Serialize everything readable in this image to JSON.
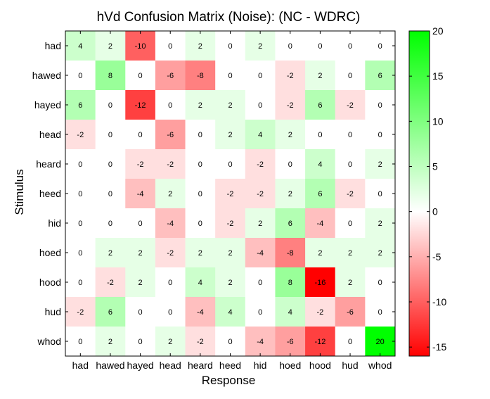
{
  "chart_data": {
    "type": "heatmap",
    "title": "hVd Confusion Matrix (Noise): (NC - WDRC)",
    "xlabel": "Response",
    "ylabel": "Stimulus",
    "x_categories": [
      "had",
      "hawed",
      "hayed",
      "head",
      "heard",
      "heed",
      "hid",
      "hoed",
      "hood",
      "hud",
      "whod"
    ],
    "y_categories": [
      "had",
      "hawed",
      "hayed",
      "head",
      "heard",
      "heed",
      "hid",
      "hoed",
      "hood",
      "hud",
      "whod"
    ],
    "values": [
      [
        4,
        2,
        -10,
        0,
        2,
        0,
        2,
        0,
        0,
        0,
        0
      ],
      [
        0,
        8,
        0,
        -6,
        -8,
        0,
        0,
        -2,
        2,
        0,
        6
      ],
      [
        6,
        0,
        -12,
        0,
        2,
        2,
        0,
        -2,
        6,
        -2,
        0
      ],
      [
        -2,
        0,
        0,
        -6,
        0,
        2,
        4,
        2,
        0,
        0,
        0
      ],
      [
        0,
        0,
        -2,
        -2,
        0,
        0,
        -2,
        0,
        4,
        0,
        2
      ],
      [
        0,
        0,
        -4,
        2,
        0,
        -2,
        -2,
        2,
        6,
        -2,
        0
      ],
      [
        0,
        0,
        0,
        -4,
        0,
        -2,
        2,
        6,
        -4,
        0,
        2
      ],
      [
        0,
        2,
        2,
        -2,
        2,
        2,
        -4,
        -8,
        2,
        2,
        2
      ],
      [
        0,
        -2,
        2,
        0,
        4,
        2,
        0,
        8,
        -16,
        2,
        0
      ],
      [
        -2,
        6,
        0,
        0,
        -4,
        4,
        0,
        4,
        -2,
        -6,
        0
      ],
      [
        0,
        2,
        0,
        2,
        -2,
        0,
        -4,
        -6,
        -12,
        0,
        20
      ]
    ],
    "colorbar": {
      "range": [
        -16,
        20
      ],
      "ticks": [
        20,
        15,
        10,
        5,
        0,
        -5,
        -10,
        -15
      ],
      "colormap": [
        "#ff0000",
        "#ffffff",
        "#00ff00"
      ]
    }
  }
}
